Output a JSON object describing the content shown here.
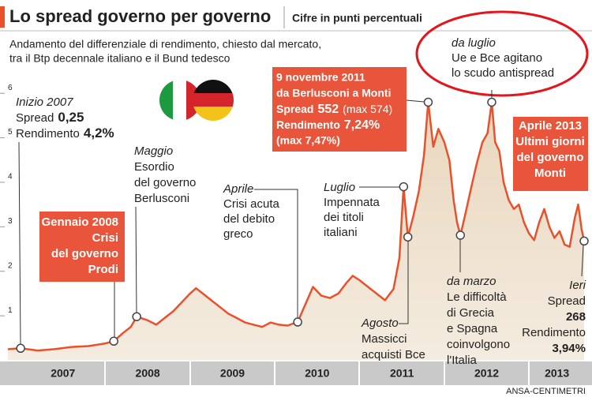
{
  "chart_data": {
    "type": "line",
    "title": "Lo spread governo per governo",
    "subtitle": "Cifre in punti percentuali",
    "description": [
      "Andamento del differenziale di rendimento, chiesto dal mercato,",
      "tra il Btp decennale italiano e il Bund tedesco"
    ],
    "x": [
      2006.85,
      2007.0,
      2007.2,
      2007.4,
      2007.6,
      2007.8,
      2008.0,
      2008.1,
      2008.2,
      2008.3,
      2008.37,
      2008.5,
      2008.6,
      2008.7,
      2008.8,
      2008.9,
      2009.0,
      2009.07,
      2009.15,
      2009.25,
      2009.35,
      2009.45,
      2009.55,
      2009.65,
      2009.75,
      2009.85,
      2009.95,
      2010.05,
      2010.15,
      2010.27,
      2010.37,
      2010.45,
      2010.55,
      2010.65,
      2010.75,
      2010.85,
      2010.92,
      2011.0,
      2011.1,
      2011.2,
      2011.3,
      2011.4,
      2011.47,
      2011.52,
      2011.57,
      2011.63,
      2011.7,
      2011.76,
      2011.81,
      2011.87,
      2011.93,
      2012.0,
      2012.06,
      2012.11,
      2012.15,
      2012.19,
      2012.25,
      2012.32,
      2012.38,
      2012.45,
      2012.51,
      2012.56,
      2012.6,
      2012.65,
      2012.7,
      2012.76,
      2012.82,
      2012.88,
      2012.94,
      2013.0,
      2013.06,
      2013.12,
      2013.18,
      2013.24,
      2013.3,
      2013.36,
      2013.42,
      2013.48,
      2013.54,
      2013.58,
      2013.62,
      2013.65
    ],
    "values": [
      0.25,
      0.27,
      0.22,
      0.25,
      0.3,
      0.32,
      0.38,
      0.43,
      0.6,
      0.75,
      0.98,
      0.9,
      0.8,
      0.95,
      1.1,
      1.3,
      1.5,
      1.62,
      1.5,
      1.35,
      1.2,
      1.05,
      0.95,
      0.85,
      0.8,
      0.75,
      0.85,
      0.8,
      0.78,
      0.86,
      1.3,
      1.65,
      1.45,
      1.4,
      1.5,
      1.75,
      1.9,
      1.8,
      1.65,
      1.5,
      1.35,
      1.6,
      2.3,
      3.9,
      2.77,
      3.2,
      3.8,
      4.6,
      5.8,
      4.8,
      5.2,
      4.9,
      4.5,
      3.6,
      3.1,
      2.81,
      3.3,
      3.9,
      4.4,
      4.9,
      5.1,
      5.8,
      4.9,
      4.7,
      4.0,
      3.6,
      3.4,
      3.5,
      3.1,
      2.85,
      2.7,
      3.1,
      3.4,
      3.0,
      2.75,
      2.9,
      2.6,
      2.55,
      3.2,
      3.5,
      2.95,
      2.68
    ],
    "color": "#e8512b",
    "xlim": [
      2006.85,
      2013.65
    ],
    "xticks": [
      {
        "value": 2007.5,
        "label": "2007"
      },
      {
        "value": 2008.5,
        "label": "2008"
      },
      {
        "value": 2009.5,
        "label": "2009"
      },
      {
        "value": 2010.5,
        "label": "2010"
      },
      {
        "value": 2011.5,
        "label": "2011"
      },
      {
        "value": 2012.5,
        "label": "2012"
      },
      {
        "value": 2013.33,
        "label": "2013"
      }
    ],
    "ylim": [
      0,
      6.5
    ],
    "yticks": [
      1,
      2,
      3,
      4,
      5,
      6
    ],
    "annotations": [
      {
        "lines": [
          "Inizio 2007",
          [
            "Spread",
            "0,25"
          ],
          [
            "Rendimento",
            "4,2%"
          ]
        ]
      },
      {
        "lines": [
          "Gennaio 2008",
          "Crisi",
          "del governo",
          "Prodi"
        ]
      },
      {
        "lines": [
          "Maggio",
          "Esordio",
          "del governo",
          "Berlusconi"
        ]
      },
      {
        "lines": [
          "Aprile",
          "Crisi acuta",
          "del debito",
          "greco"
        ]
      },
      {
        "lines": [
          "9 novembre 2011",
          "da Berlusconi a Monti",
          [
            "Spread",
            "552",
            "(max 574)"
          ],
          [
            "Rendimento",
            "7,24%"
          ],
          "(max 7,47%)"
        ]
      },
      {
        "lines": [
          "Luglio",
          "Impennata",
          "dei titoli",
          "italiani"
        ]
      },
      {
        "lines": [
          "Agosto",
          "Massicci",
          "acquisti Bce"
        ]
      },
      {
        "lines": [
          "da marzo",
          "Le difficoltà",
          "di Grecia",
          "e Spagna",
          "coinvolgono",
          "l'Italia"
        ]
      },
      {
        "lines": [
          "da luglio",
          "Ue e Bce agitano",
          "lo scudo antispread"
        ]
      },
      {
        "lines": [
          "Aprile 2013",
          "Ultimi giorni",
          "del governo",
          "Monti"
        ]
      },
      {
        "lines": [
          "Ieri",
          "Spread",
          "268",
          "Rendimento",
          "3,94%"
        ]
      }
    ],
    "source": "ANSA-CENTIMETRI"
  }
}
